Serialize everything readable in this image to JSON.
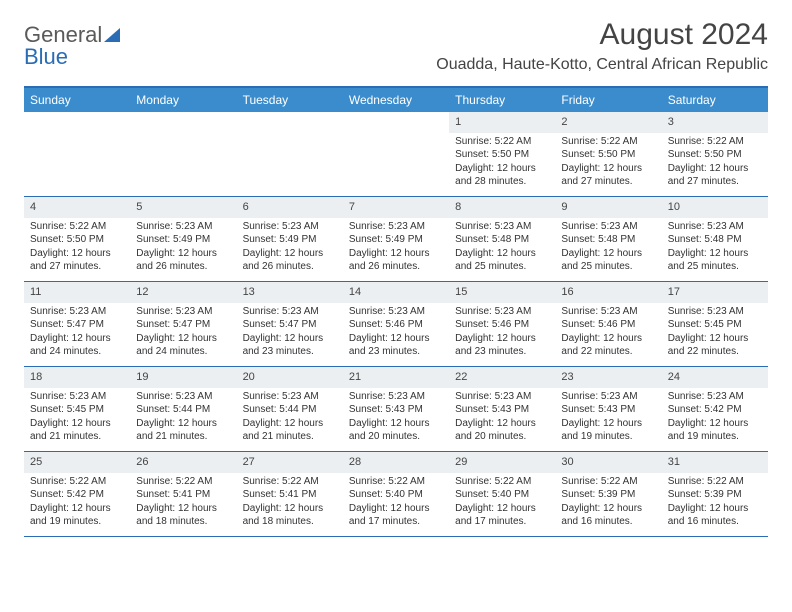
{
  "logo": {
    "text1": "General",
    "text2": "Blue"
  },
  "title": "August 2024",
  "location": "Ouadda, Haute-Kotto, Central African Republic",
  "day_headers": [
    "Sunday",
    "Monday",
    "Tuesday",
    "Wednesday",
    "Thursday",
    "Friday",
    "Saturday"
  ],
  "colors": {
    "header_bg": "#3b8ccc",
    "header_text": "#ffffff",
    "top_border": "#2a6db5",
    "row_border": "#2a6db5",
    "daynum_bg": "#eceff1",
    "logo_blue": "#2a6db5",
    "text": "#333333"
  },
  "weeks": [
    [
      {
        "empty": true
      },
      {
        "empty": true
      },
      {
        "empty": true
      },
      {
        "empty": true
      },
      {
        "num": "1",
        "sunrise": "Sunrise: 5:22 AM",
        "sunset": "Sunset: 5:50 PM",
        "daylight": "Daylight: 12 hours and 28 minutes."
      },
      {
        "num": "2",
        "sunrise": "Sunrise: 5:22 AM",
        "sunset": "Sunset: 5:50 PM",
        "daylight": "Daylight: 12 hours and 27 minutes."
      },
      {
        "num": "3",
        "sunrise": "Sunrise: 5:22 AM",
        "sunset": "Sunset: 5:50 PM",
        "daylight": "Daylight: 12 hours and 27 minutes."
      }
    ],
    [
      {
        "num": "4",
        "sunrise": "Sunrise: 5:22 AM",
        "sunset": "Sunset: 5:50 PM",
        "daylight": "Daylight: 12 hours and 27 minutes."
      },
      {
        "num": "5",
        "sunrise": "Sunrise: 5:23 AM",
        "sunset": "Sunset: 5:49 PM",
        "daylight": "Daylight: 12 hours and 26 minutes."
      },
      {
        "num": "6",
        "sunrise": "Sunrise: 5:23 AM",
        "sunset": "Sunset: 5:49 PM",
        "daylight": "Daylight: 12 hours and 26 minutes."
      },
      {
        "num": "7",
        "sunrise": "Sunrise: 5:23 AM",
        "sunset": "Sunset: 5:49 PM",
        "daylight": "Daylight: 12 hours and 26 minutes."
      },
      {
        "num": "8",
        "sunrise": "Sunrise: 5:23 AM",
        "sunset": "Sunset: 5:48 PM",
        "daylight": "Daylight: 12 hours and 25 minutes."
      },
      {
        "num": "9",
        "sunrise": "Sunrise: 5:23 AM",
        "sunset": "Sunset: 5:48 PM",
        "daylight": "Daylight: 12 hours and 25 minutes."
      },
      {
        "num": "10",
        "sunrise": "Sunrise: 5:23 AM",
        "sunset": "Sunset: 5:48 PM",
        "daylight": "Daylight: 12 hours and 25 minutes."
      }
    ],
    [
      {
        "num": "11",
        "sunrise": "Sunrise: 5:23 AM",
        "sunset": "Sunset: 5:47 PM",
        "daylight": "Daylight: 12 hours and 24 minutes."
      },
      {
        "num": "12",
        "sunrise": "Sunrise: 5:23 AM",
        "sunset": "Sunset: 5:47 PM",
        "daylight": "Daylight: 12 hours and 24 minutes."
      },
      {
        "num": "13",
        "sunrise": "Sunrise: 5:23 AM",
        "sunset": "Sunset: 5:47 PM",
        "daylight": "Daylight: 12 hours and 23 minutes."
      },
      {
        "num": "14",
        "sunrise": "Sunrise: 5:23 AM",
        "sunset": "Sunset: 5:46 PM",
        "daylight": "Daylight: 12 hours and 23 minutes."
      },
      {
        "num": "15",
        "sunrise": "Sunrise: 5:23 AM",
        "sunset": "Sunset: 5:46 PM",
        "daylight": "Daylight: 12 hours and 23 minutes."
      },
      {
        "num": "16",
        "sunrise": "Sunrise: 5:23 AM",
        "sunset": "Sunset: 5:46 PM",
        "daylight": "Daylight: 12 hours and 22 minutes."
      },
      {
        "num": "17",
        "sunrise": "Sunrise: 5:23 AM",
        "sunset": "Sunset: 5:45 PM",
        "daylight": "Daylight: 12 hours and 22 minutes."
      }
    ],
    [
      {
        "num": "18",
        "sunrise": "Sunrise: 5:23 AM",
        "sunset": "Sunset: 5:45 PM",
        "daylight": "Daylight: 12 hours and 21 minutes."
      },
      {
        "num": "19",
        "sunrise": "Sunrise: 5:23 AM",
        "sunset": "Sunset: 5:44 PM",
        "daylight": "Daylight: 12 hours and 21 minutes."
      },
      {
        "num": "20",
        "sunrise": "Sunrise: 5:23 AM",
        "sunset": "Sunset: 5:44 PM",
        "daylight": "Daylight: 12 hours and 21 minutes."
      },
      {
        "num": "21",
        "sunrise": "Sunrise: 5:23 AM",
        "sunset": "Sunset: 5:43 PM",
        "daylight": "Daylight: 12 hours and 20 minutes."
      },
      {
        "num": "22",
        "sunrise": "Sunrise: 5:23 AM",
        "sunset": "Sunset: 5:43 PM",
        "daylight": "Daylight: 12 hours and 20 minutes."
      },
      {
        "num": "23",
        "sunrise": "Sunrise: 5:23 AM",
        "sunset": "Sunset: 5:43 PM",
        "daylight": "Daylight: 12 hours and 19 minutes."
      },
      {
        "num": "24",
        "sunrise": "Sunrise: 5:23 AM",
        "sunset": "Sunset: 5:42 PM",
        "daylight": "Daylight: 12 hours and 19 minutes."
      }
    ],
    [
      {
        "num": "25",
        "sunrise": "Sunrise: 5:22 AM",
        "sunset": "Sunset: 5:42 PM",
        "daylight": "Daylight: 12 hours and 19 minutes."
      },
      {
        "num": "26",
        "sunrise": "Sunrise: 5:22 AM",
        "sunset": "Sunset: 5:41 PM",
        "daylight": "Daylight: 12 hours and 18 minutes."
      },
      {
        "num": "27",
        "sunrise": "Sunrise: 5:22 AM",
        "sunset": "Sunset: 5:41 PM",
        "daylight": "Daylight: 12 hours and 18 minutes."
      },
      {
        "num": "28",
        "sunrise": "Sunrise: 5:22 AM",
        "sunset": "Sunset: 5:40 PM",
        "daylight": "Daylight: 12 hours and 17 minutes."
      },
      {
        "num": "29",
        "sunrise": "Sunrise: 5:22 AM",
        "sunset": "Sunset: 5:40 PM",
        "daylight": "Daylight: 12 hours and 17 minutes."
      },
      {
        "num": "30",
        "sunrise": "Sunrise: 5:22 AM",
        "sunset": "Sunset: 5:39 PM",
        "daylight": "Daylight: 12 hours and 16 minutes."
      },
      {
        "num": "31",
        "sunrise": "Sunrise: 5:22 AM",
        "sunset": "Sunset: 5:39 PM",
        "daylight": "Daylight: 12 hours and 16 minutes."
      }
    ]
  ]
}
